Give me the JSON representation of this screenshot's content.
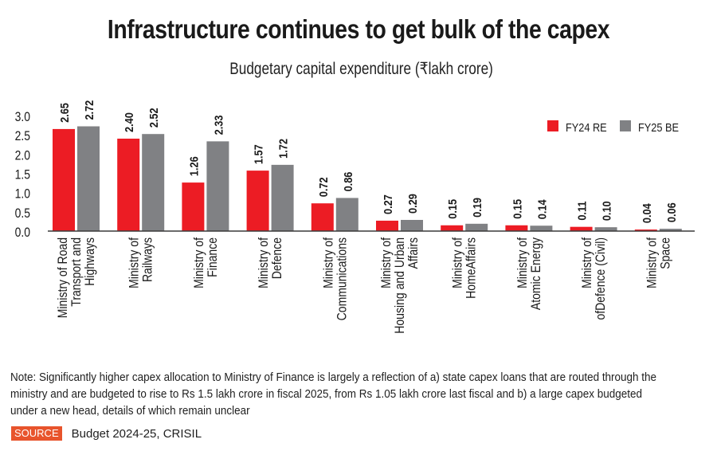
{
  "header": {
    "title": "Infrastructure continues to get bulk of the capex",
    "subtitle": "Budgetary capital expenditure (₹lakh crore)"
  },
  "chart_data": {
    "type": "bar",
    "title": "Infrastructure continues to get bulk of the capex",
    "subtitle": "Budgetary capital expenditure (₹lakh crore)",
    "ylabel": "₹ lakh crore",
    "xlabel": "",
    "ylim": [
      0,
      3.0
    ],
    "yticks": [
      "0.0",
      "0.5",
      "1.0",
      "1.5",
      "2.0",
      "2.5",
      "3.0"
    ],
    "grid": false,
    "legend_position": "top-right",
    "categories": [
      [
        "Ministry of Road",
        "Transport and",
        "Highways"
      ],
      [
        "Ministry of",
        "Railways"
      ],
      [
        "Ministry of",
        "Finance"
      ],
      [
        "Ministry of",
        "Defence"
      ],
      [
        "Ministry of",
        "Communications"
      ],
      [
        "Ministry of",
        "Housing and Urban",
        "Affairs"
      ],
      [
        "Ministry of",
        "HomeAffairs"
      ],
      [
        "Ministry of",
        "Atomic Energy"
      ],
      [
        "Ministry of",
        "ofDefence (Civil)"
      ],
      [
        "Ministry of",
        "Space"
      ]
    ],
    "series": [
      {
        "name": "FY24 RE",
        "color": "#ec1c24",
        "values": [
          2.65,
          2.4,
          1.26,
          1.57,
          0.72,
          0.27,
          0.15,
          0.15,
          0.11,
          0.04
        ],
        "labels": [
          "2.65",
          "2.40",
          "1.26",
          "1.57",
          "0.72",
          "0.27",
          "0.15",
          "0.15",
          "0.11",
          "0.04"
        ]
      },
      {
        "name": "FY25 BE",
        "color": "#808184",
        "values": [
          2.72,
          2.52,
          2.33,
          1.72,
          0.86,
          0.29,
          0.19,
          0.14,
          0.1,
          0.06
        ],
        "labels": [
          "2.72",
          "2.52",
          "2.33",
          "1.72",
          "0.86",
          "0.29",
          "0.19",
          "0.14",
          "0.10",
          "0.06"
        ]
      }
    ]
  },
  "footer": {
    "note": "Note: Significantly higher capex allocation to Ministry of Finance is largely a reflection of a) state capex loans that are routed through the ministry and are budgeted to rise to Rs 1.5 lakh crore in fiscal 2025, from Rs 1.05 lakh crore last fiscal and b) a large capex budgeted under a new head, details of which remain unclear",
    "source_label": "SOURCE",
    "source_text": "Budget 2024-25, CRISIL",
    "source_color": "#e8542c"
  }
}
